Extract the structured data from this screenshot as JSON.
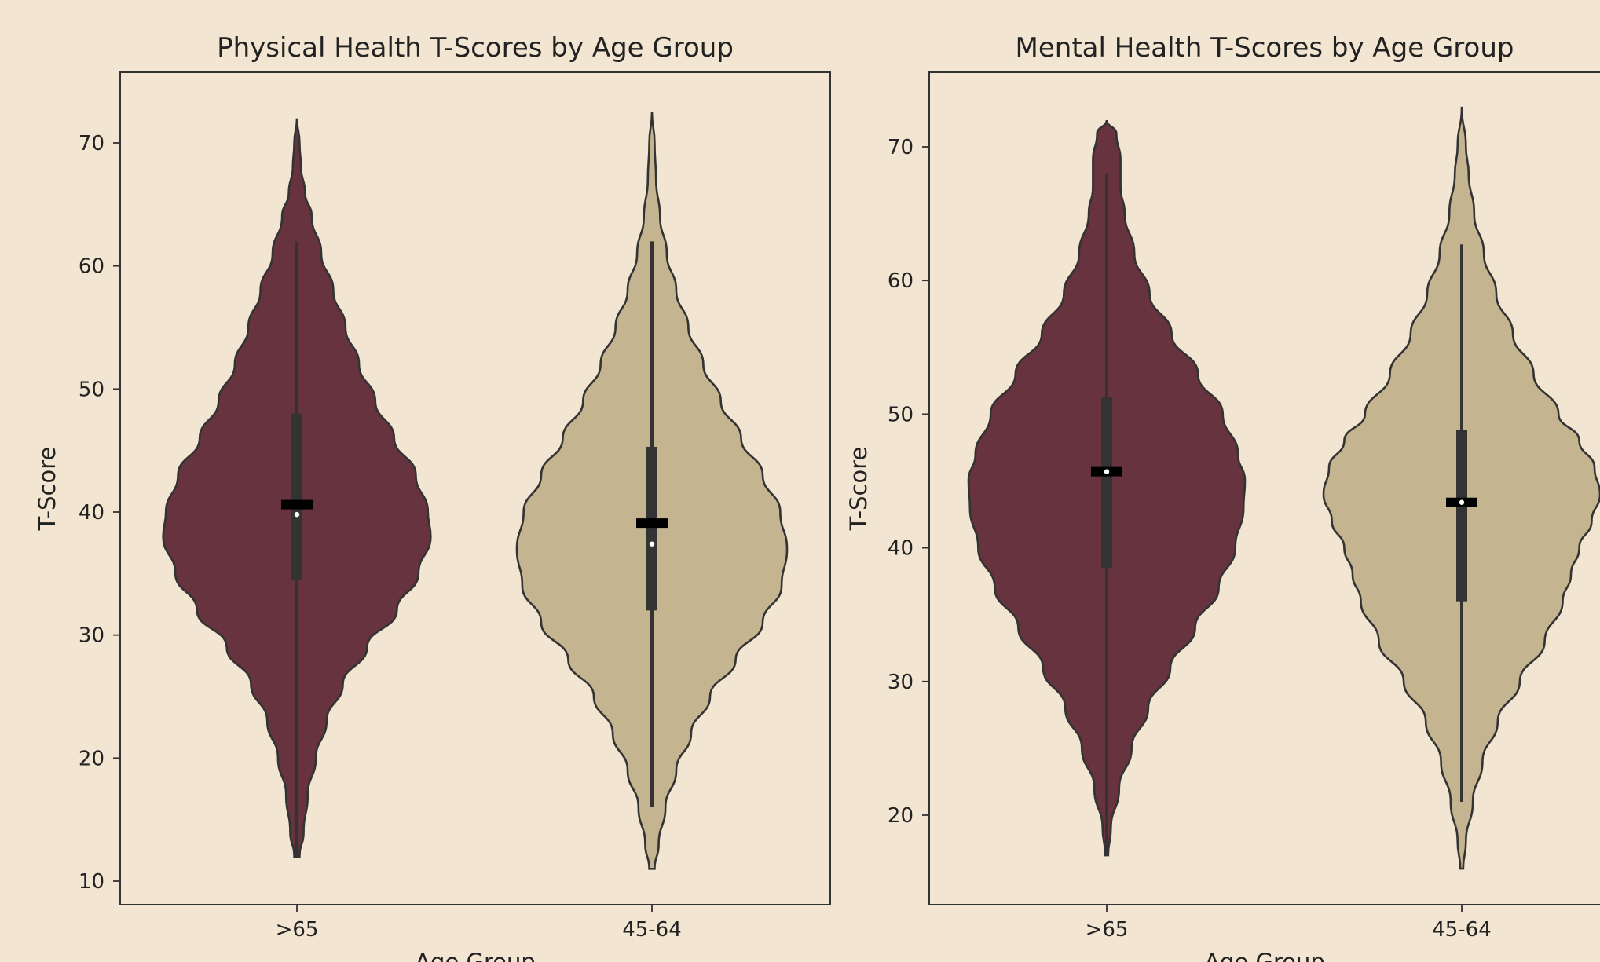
{
  "colors": {
    "background": "#f2e5d1",
    "axes": "#333333",
    "outline": "#333333",
    "series_older": "#67333f",
    "series_mid": "#c4b48f",
    "box": "#333333",
    "median": "#ffffff",
    "mean_bar": "#000000"
  },
  "chart_data": [
    {
      "type": "violin",
      "title": "Physical Health T-Scores by Age Group",
      "xlabel": "Age Group",
      "ylabel": "T-Score",
      "ylim": [
        8,
        76
      ],
      "yticks": [
        10,
        20,
        30,
        40,
        50,
        60,
        70
      ],
      "categories": [
        ">65",
        "45-64"
      ],
      "series": [
        {
          "category": ">65",
          "min": 12,
          "max": 72,
          "whisker_low": 12,
          "whisker_high": 62,
          "q1": 34.5,
          "q3": 48,
          "median": 39.8,
          "mean": 40.6,
          "density": [
            [
              12,
              0.02
            ],
            [
              14,
              0.05
            ],
            [
              17,
              0.08
            ],
            [
              20,
              0.14
            ],
            [
              23,
              0.22
            ],
            [
              26,
              0.34
            ],
            [
              29,
              0.52
            ],
            [
              32,
              0.74
            ],
            [
              35,
              0.9
            ],
            [
              38,
              0.99
            ],
            [
              40,
              0.97
            ],
            [
              43,
              0.88
            ],
            [
              46,
              0.72
            ],
            [
              49,
              0.58
            ],
            [
              52,
              0.46
            ],
            [
              55,
              0.36
            ],
            [
              58,
              0.27
            ],
            [
              61,
              0.18
            ],
            [
              64,
              0.11
            ],
            [
              66,
              0.06
            ],
            [
              68,
              0.03
            ],
            [
              70,
              0.02
            ],
            [
              72,
              0.0
            ]
          ]
        },
        {
          "category": "45-64",
          "min": 11,
          "max": 72.5,
          "whisker_low": 16,
          "whisker_high": 62,
          "q1": 32,
          "q3": 45.3,
          "median": 37.4,
          "mean": 39.1,
          "density": [
            [
              11,
              0.02
            ],
            [
              13,
              0.05
            ],
            [
              16,
              0.1
            ],
            [
              19,
              0.18
            ],
            [
              22,
              0.29
            ],
            [
              25,
              0.43
            ],
            [
              28,
              0.62
            ],
            [
              31,
              0.82
            ],
            [
              34,
              0.96
            ],
            [
              37,
              1.0
            ],
            [
              40,
              0.95
            ],
            [
              43,
              0.82
            ],
            [
              46,
              0.66
            ],
            [
              49,
              0.51
            ],
            [
              52,
              0.38
            ],
            [
              55,
              0.27
            ],
            [
              58,
              0.18
            ],
            [
              61,
              0.11
            ],
            [
              64,
              0.06
            ],
            [
              67,
              0.03
            ],
            [
              70,
              0.02
            ],
            [
              72.5,
              0.0
            ]
          ]
        }
      ]
    },
    {
      "type": "violin",
      "title": "Mental Health T-Scores by Age Group",
      "xlabel": "Age Group",
      "ylabel": "T-Score",
      "ylim": [
        13.5,
        76
      ],
      "yticks": [
        20,
        30,
        40,
        50,
        60,
        70
      ],
      "categories": [
        ">65",
        "45-64"
      ],
      "series": [
        {
          "category": ">65",
          "min": 17,
          "max": 72,
          "whisker_low": 17,
          "whisker_high": 68,
          "q1": 38.5,
          "q3": 51.3,
          "median": 45.7,
          "mean": 45.7,
          "density": [
            [
              17,
              0.01
            ],
            [
              19,
              0.03
            ],
            [
              22,
              0.09
            ],
            [
              25,
              0.18
            ],
            [
              28,
              0.3
            ],
            [
              31,
              0.46
            ],
            [
              34,
              0.64
            ],
            [
              37,
              0.81
            ],
            [
              40,
              0.93
            ],
            [
              43,
              0.99
            ],
            [
              45,
              1.0
            ],
            [
              47,
              0.95
            ],
            [
              50,
              0.84
            ],
            [
              53,
              0.66
            ],
            [
              56,
              0.47
            ],
            [
              59,
              0.31
            ],
            [
              62,
              0.2
            ],
            [
              65,
              0.13
            ],
            [
              67,
              0.1
            ],
            [
              69,
              0.1
            ],
            [
              71,
              0.07
            ],
            [
              72,
              0.0
            ]
          ]
        },
        {
          "category": "45-64",
          "min": 16,
          "max": 73,
          "whisker_low": 21,
          "whisker_high": 62.7,
          "q1": 36,
          "q3": 48.8,
          "median": 43.4,
          "mean": 43.4,
          "density": [
            [
              16,
              0.01
            ],
            [
              18,
              0.03
            ],
            [
              21,
              0.08
            ],
            [
              24,
              0.15
            ],
            [
              27,
              0.26
            ],
            [
              30,
              0.42
            ],
            [
              33,
              0.6
            ],
            [
              36,
              0.73
            ],
            [
              38,
              0.79
            ],
            [
              40,
              0.85
            ],
            [
              42,
              0.94
            ],
            [
              44,
              1.0
            ],
            [
              46,
              0.96
            ],
            [
              48,
              0.85
            ],
            [
              50,
              0.7
            ],
            [
              53,
              0.52
            ],
            [
              56,
              0.37
            ],
            [
              59,
              0.25
            ],
            [
              62,
              0.16
            ],
            [
              65,
              0.09
            ],
            [
              68,
              0.05
            ],
            [
              70,
              0.03
            ],
            [
              73,
              0.0
            ]
          ]
        }
      ]
    }
  ]
}
